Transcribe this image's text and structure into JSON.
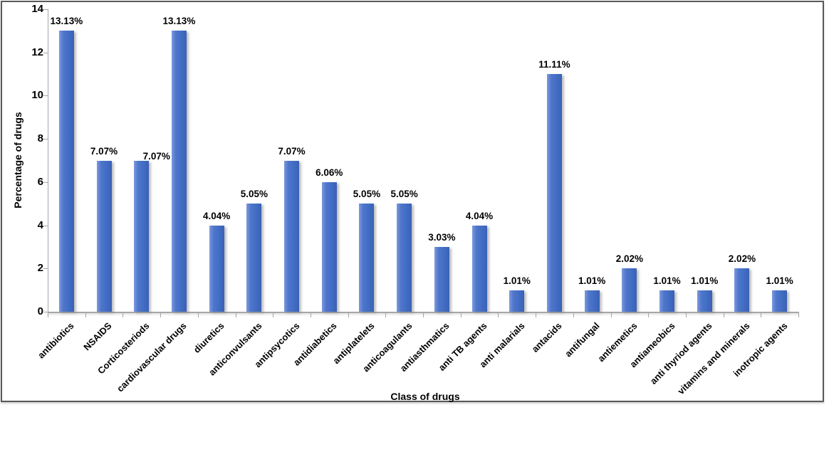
{
  "window": {
    "background_color": "#ffffff",
    "frame_border_color": "#58595b"
  },
  "chart_data": {
    "type": "bar",
    "title": "",
    "xlabel": "Class of drugs",
    "ylabel": "Percentage of drugs",
    "categories": [
      "antibiotics",
      "NSAIDS",
      "Corticosteriods",
      "cardiovascular drugs",
      "diuretics",
      "anticonvulsants",
      "antipsycotics",
      "antidiabetics",
      "antiplatelets",
      "anticoagulants",
      "antiasthmatics",
      "anti TB agents",
      "anti malarials",
      "antacids",
      "antifungal",
      "antiemetics",
      "antiameobics",
      "anti thyriod agents",
      "vitamins and minerals",
      "inotropic agents"
    ],
    "values": [
      13.13,
      7.07,
      7.07,
      13.13,
      4.04,
      5.05,
      7.07,
      6.06,
      5.05,
      5.05,
      3.03,
      4.04,
      1.01,
      11.11,
      1.01,
      2.02,
      1.01,
      1.01,
      2.02,
      1.01
    ],
    "data_labels": [
      "13.13%",
      "7.07%",
      "7.07%",
      "13.13%",
      "4.04%",
      "5.05%",
      "7.07%",
      "6.06%",
      "5.05%",
      "5.05%",
      "3.03%",
      "4.04%",
      "1.01%",
      "11.11%",
      "1.01%",
      "2.02%",
      "1.01%",
      "1.01%",
      "2.02%",
      "1.01%"
    ],
    "plotted_values": [
      13,
      7,
      7,
      13,
      4,
      5,
      7,
      6,
      5,
      5,
      3,
      4,
      1,
      11,
      1,
      2,
      1,
      1,
      2,
      1
    ],
    "ylim": [
      0,
      14
    ],
    "yticks": [
      0,
      2,
      4,
      6,
      8,
      10,
      12,
      14
    ],
    "grid": false,
    "legend": false,
    "bar_color": "#4470c6",
    "bar_gradient": [
      "#7b9ade",
      "#4470c6",
      "#3a61b7"
    ],
    "axis_color": "#a6a6a6",
    "text_color": "#000000",
    "xlabel_rotation_deg": -45,
    "label_offsets": [
      {
        "index": 2,
        "dx": 21,
        "dy": 7
      }
    ]
  }
}
